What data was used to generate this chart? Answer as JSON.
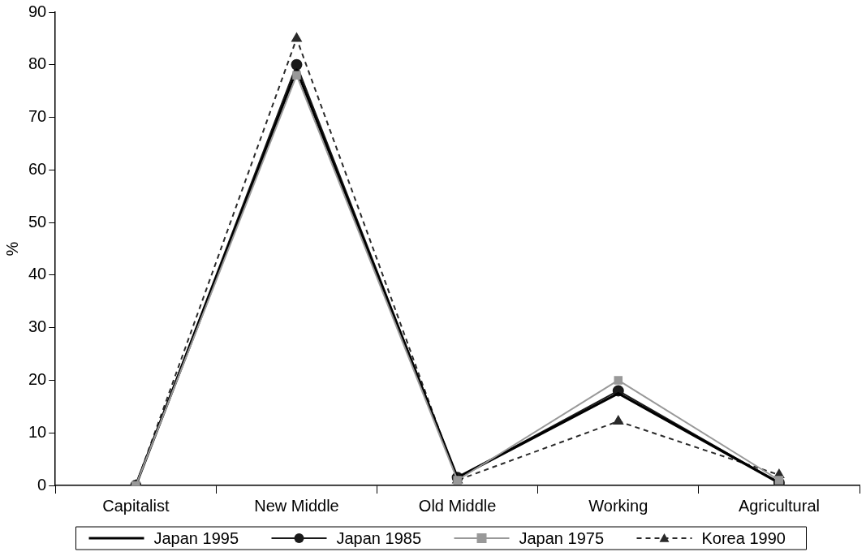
{
  "chart_data": {
    "type": "line",
    "ylabel": "%",
    "categories": [
      "Capitalist",
      "New Middle",
      "Old Middle",
      "Working",
      "Agricultural"
    ],
    "ylim": [
      0,
      90
    ],
    "yticks": [
      0,
      10,
      20,
      30,
      40,
      50,
      60,
      70,
      80,
      90
    ],
    "grid": false,
    "legend": "bottom",
    "series": [
      {
        "name": "Japan 1995",
        "color": "#000000",
        "marker": "none",
        "line_style": "solid",
        "values": [
          0,
          79,
          1.5,
          17.5,
          0.5
        ]
      },
      {
        "name": "Japan 1985",
        "color": "#1a1a1a",
        "marker": "circle",
        "line_style": "solid",
        "values": [
          0,
          80,
          1.5,
          18,
          0.5
        ]
      },
      {
        "name": "Japan 1975",
        "color": "#999999",
        "marker": "square",
        "line_style": "solid",
        "values": [
          0,
          78,
          1,
          20,
          1
        ]
      },
      {
        "name": "Korea 1990",
        "color": "#2a2a2a",
        "marker": "triangle",
        "line_style": "dashed",
        "values": [
          0,
          85,
          1,
          12.2,
          2
        ]
      }
    ]
  }
}
